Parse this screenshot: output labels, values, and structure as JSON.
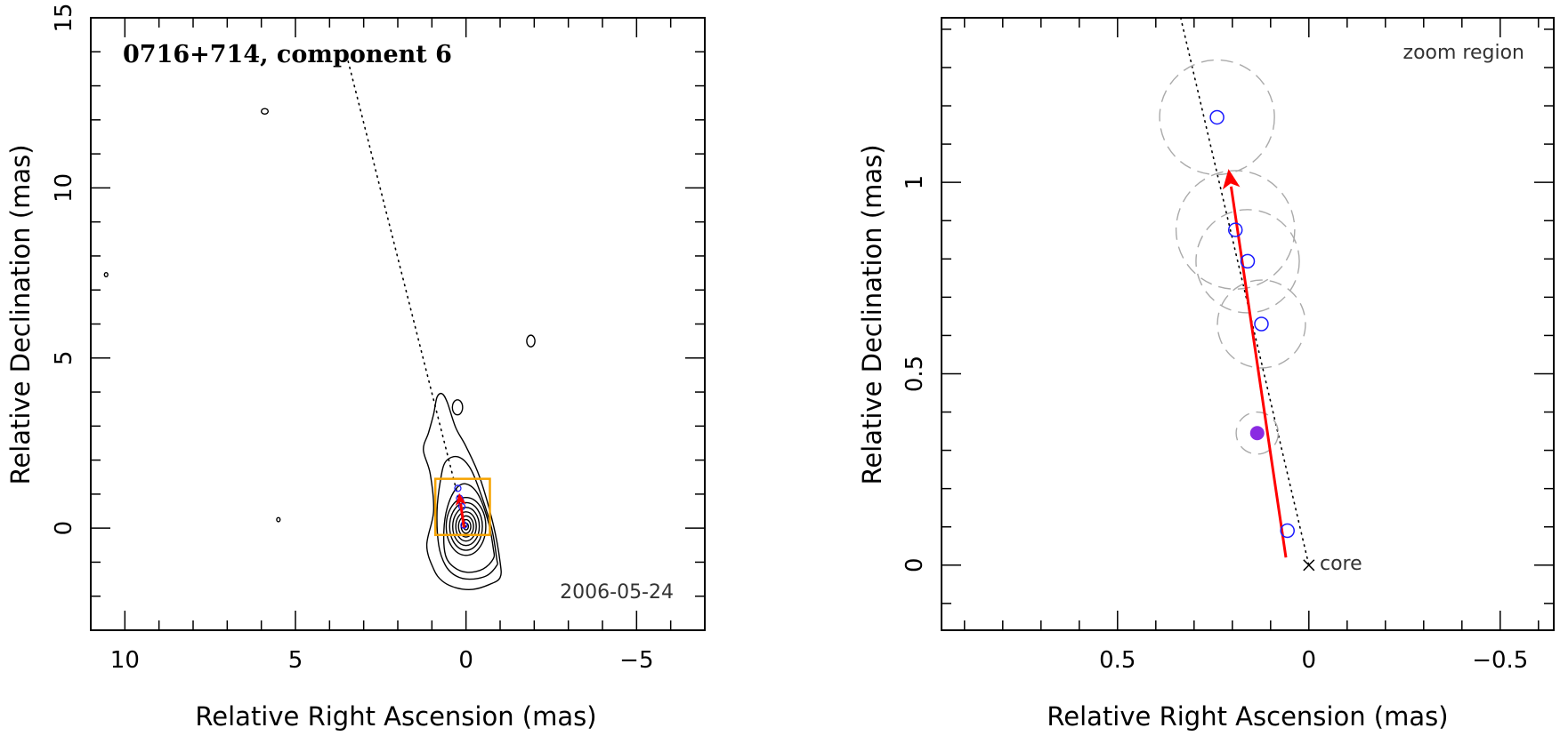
{
  "chart_data": [
    {
      "panel": "left",
      "type": "contour",
      "title": "0716+714, component 6",
      "date_label": "2006-05-24",
      "xlabel": "Relative Right Ascension (mas)",
      "ylabel": "Relative Declination (mas)",
      "xlim": [
        11,
        -7
      ],
      "ylim": [
        -3,
        15
      ],
      "xticks": [
        10,
        5,
        0,
        -5
      ],
      "xtick_labels": [
        "10",
        "5",
        "0",
        "−5"
      ],
      "yticks": [
        0,
        5,
        10,
        15
      ],
      "ytick_labels": [
        "0",
        "5",
        "10",
        "15"
      ],
      "contours": [
        {
          "x": [
            -1.0,
            -0.7,
            -0.2,
            0.3,
            0.7,
            0.95,
            1.15,
            0.95,
            1.05,
            1.25,
            1.1,
            0.95,
            0.85,
            0.7,
            0.55,
            0.3,
            0.0,
            -0.4,
            -0.8,
            -1.0
          ],
          "y": [
            -1.45,
            -1.65,
            -1.8,
            -1.75,
            -1.55,
            -1.2,
            -0.5,
            0.5,
            1.6,
            2.3,
            2.8,
            3.35,
            3.85,
            3.95,
            3.7,
            2.95,
            2.4,
            1.5,
            0.1,
            -1.0
          ]
        },
        {
          "x": [
            -0.9,
            -0.6,
            -0.1,
            0.3,
            0.6,
            0.8,
            0.85,
            0.75,
            0.6,
            0.25,
            -0.1,
            -0.4,
            -0.75,
            -0.9
          ],
          "y": [
            -1.1,
            -1.4,
            -1.5,
            -1.4,
            -1.1,
            -0.5,
            0.5,
            1.4,
            1.95,
            2.1,
            1.8,
            1.1,
            0.0,
            -0.9
          ]
        },
        {
          "x": [
            -0.8,
            -0.5,
            -0.05,
            0.35,
            0.6,
            0.65,
            0.55,
            0.3,
            0.0,
            -0.35,
            -0.65,
            -0.8
          ],
          "y": [
            -0.9,
            -1.2,
            -1.3,
            -1.15,
            -0.8,
            -0.1,
            0.6,
            1.15,
            1.3,
            1.0,
            0.2,
            -0.6
          ]
        }
      ],
      "contour_ellipses": [
        {
          "cx": 0.0,
          "cy": 0.05,
          "rx": 0.58,
          "ry": 0.85
        },
        {
          "cx": 0.0,
          "cy": 0.05,
          "rx": 0.48,
          "ry": 0.7
        },
        {
          "cx": 0.0,
          "cy": 0.05,
          "rx": 0.39,
          "ry": 0.56
        },
        {
          "cx": 0.0,
          "cy": 0.05,
          "rx": 0.3,
          "ry": 0.43
        },
        {
          "cx": 0.0,
          "cy": 0.05,
          "rx": 0.22,
          "ry": 0.31
        },
        {
          "cx": 0.0,
          "cy": 0.05,
          "rx": 0.14,
          "ry": 0.2
        },
        {
          "cx": 0.0,
          "cy": 0.05,
          "rx": 0.07,
          "ry": 0.1
        },
        {
          "cx": 5.9,
          "cy": 12.25,
          "rx": 0.1,
          "ry": 0.08
        },
        {
          "cx": -1.9,
          "cy": 5.5,
          "rx": 0.12,
          "ry": 0.17
        },
        {
          "cx": 0.25,
          "cy": 3.55,
          "rx": 0.15,
          "ry": 0.22
        },
        {
          "cx": 5.5,
          "cy": 0.25,
          "rx": 0.05,
          "ry": 0.06
        },
        {
          "cx": 10.55,
          "cy": 7.45,
          "rx": 0.05,
          "ry": 0.06
        }
      ],
      "trajectory_line": {
        "x": [
          3.5,
          0.0
        ],
        "y": [
          13.9,
          0.0
        ]
      },
      "zoom_box": {
        "x": [
          0.9,
          -0.7
        ],
        "y": [
          -0.2,
          1.45
        ]
      },
      "components": {
        "x": [
          0.24,
          0.19,
          0.16,
          0.12,
          0.06
        ],
        "y": [
          1.17,
          0.88,
          0.8,
          0.63,
          0.09
        ]
      },
      "velocity_arrow": {
        "x": [
          0.06,
          0.2
        ],
        "y": [
          0.02,
          1.03
        ]
      }
    },
    {
      "panel": "right",
      "type": "scatter",
      "corner_label": "zoom region",
      "core_label": "core",
      "xlabel": "Relative Right Ascension (mas)",
      "ylabel": "Relative Declination (mas)",
      "xlim": [
        0.96,
        -0.64
      ],
      "ylim": [
        -0.17,
        1.43
      ],
      "xticks": [
        0.5,
        0,
        -0.5
      ],
      "xtick_labels": [
        "0.5",
        "0",
        "−0.5"
      ],
      "yticks": [
        0,
        0.5,
        1
      ],
      "ytick_labels": [
        "0",
        "0.5",
        "1"
      ],
      "trajectory_line": {
        "x": [
          0.335,
          0.0
        ],
        "y": [
          1.43,
          0.0
        ]
      },
      "series": [
        {
          "name": "",
          "marker": "open-circle",
          "color": "#1a1aff",
          "x": [
            0.24,
            0.192,
            0.16,
            0.124,
            0.056
          ],
          "y": [
            1.17,
            0.876,
            0.794,
            0.63,
            0.09
          ],
          "uncertainty_radius": [
            0.15,
            0.155,
            0.135,
            0.115,
            0.0
          ]
        },
        {
          "name": "",
          "marker": "filled-circle",
          "color": "#8a2be2",
          "x": [
            0.135
          ],
          "y": [
            0.345
          ],
          "uncertainty_radius": [
            0.055
          ]
        }
      ],
      "velocity_arrow": {
        "x": [
          0.06,
          0.21
        ],
        "y": [
          0.02,
          1.035
        ],
        "color": "#ff0000"
      },
      "core": {
        "x": 0.0,
        "y": 0.0
      }
    }
  ],
  "colors": {
    "arrow": "#ff0000",
    "zoom_box": "#f5a300",
    "component_open": "#1a1aff",
    "component_filled": "#8a2be2",
    "uncertainty_circle": "#aaaaaa"
  }
}
